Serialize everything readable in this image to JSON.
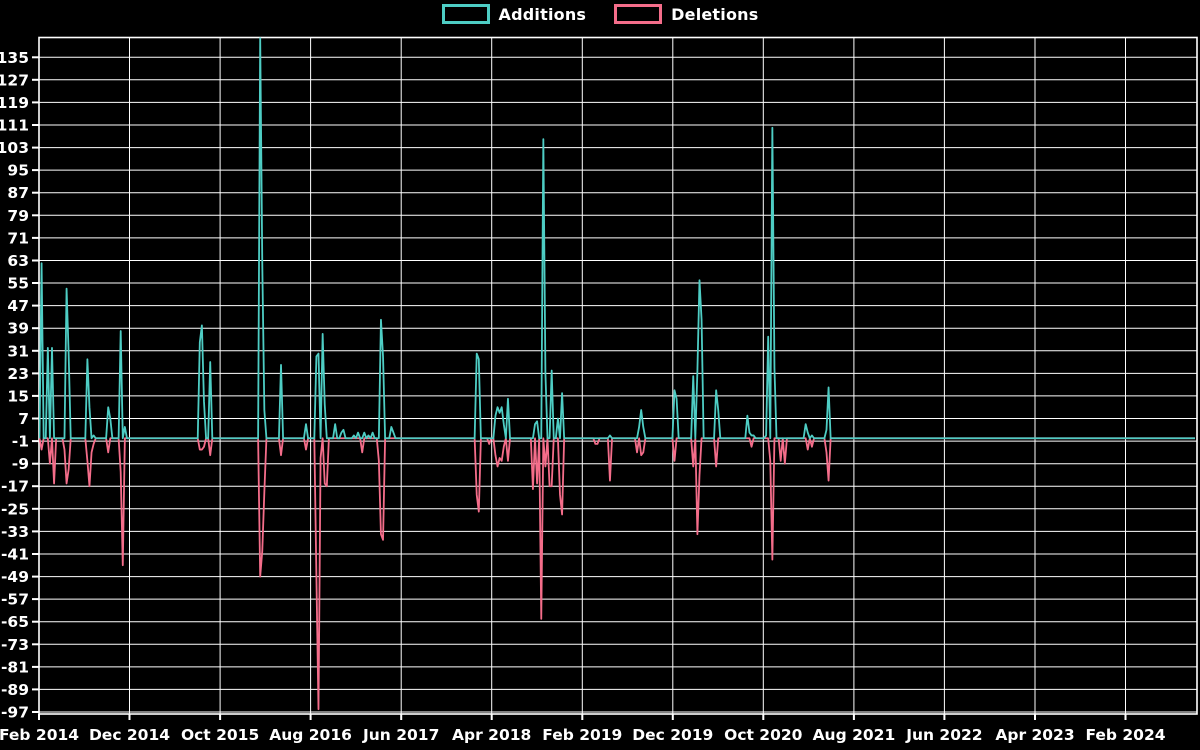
{
  "legend": {
    "items": [
      {
        "label": "Additions",
        "color": "#4ecdc4"
      },
      {
        "label": "Deletions",
        "color": "#f46d8a"
      }
    ]
  },
  "chart_data": {
    "type": "line",
    "title": "",
    "description": "Weekly additions and deletions spike chart on black background with white grid",
    "background_color": "#000000",
    "grid": {
      "visible": true,
      "color": "#ffffff"
    },
    "legend_position": "top-center",
    "x_axis": {
      "tick_labels": [
        "Feb 2014",
        "Dec 2014",
        "Oct 2015",
        "Aug 2016",
        "Jun 2017",
        "Apr 2018",
        "Feb 2019",
        "Dec 2019",
        "Oct 2020",
        "Aug 2021",
        "Jun 2022",
        "Apr 2023",
        "Feb 2024"
      ],
      "tick_interval": "10 months"
    },
    "y_axis": {
      "tick_values": [
        135,
        127,
        119,
        111,
        103,
        95,
        87,
        79,
        71,
        63,
        55,
        47,
        39,
        31,
        23,
        15,
        7,
        -1,
        -9,
        -17,
        -25,
        -33,
        -41,
        -49,
        -57,
        -65,
        -73,
        -81,
        -89,
        -97
      ],
      "step": 8,
      "min_visible": -97,
      "max_visible": 135
    },
    "weeks_total": 556,
    "series": [
      {
        "name": "Additions",
        "color": "#4ecdc4",
        "baseline": 0,
        "spikes_weekly": [
          [
            1,
            62
          ],
          [
            4,
            32
          ],
          [
            6,
            32
          ],
          [
            13,
            53
          ],
          [
            14,
            30
          ],
          [
            23,
            28
          ],
          [
            24,
            11
          ],
          [
            26,
            1
          ],
          [
            33,
            11
          ],
          [
            34,
            7
          ],
          [
            39,
            38
          ],
          [
            41,
            4
          ],
          [
            77,
            34
          ],
          [
            78,
            40
          ],
          [
            79,
            13
          ],
          [
            82,
            27
          ],
          [
            106,
            142
          ],
          [
            107,
            62
          ],
          [
            108,
            10
          ],
          [
            116,
            26
          ],
          [
            128,
            5
          ],
          [
            133,
            29
          ],
          [
            134,
            30
          ],
          [
            136,
            37
          ],
          [
            137,
            12
          ],
          [
            142,
            5
          ],
          [
            145,
            2
          ],
          [
            146,
            3
          ],
          [
            151,
            1
          ],
          [
            153,
            2
          ],
          [
            156,
            2
          ],
          [
            158,
            1
          ],
          [
            160,
            2
          ],
          [
            164,
            42
          ],
          [
            165,
            29
          ],
          [
            169,
            4
          ],
          [
            170,
            2
          ],
          [
            210,
            30
          ],
          [
            211,
            28
          ],
          [
            219,
            8
          ],
          [
            220,
            11
          ],
          [
            221,
            9
          ],
          [
            222,
            11
          ],
          [
            223,
            5
          ],
          [
            225,
            14
          ],
          [
            238,
            5
          ],
          [
            239,
            6
          ],
          [
            242,
            106
          ],
          [
            243,
            23
          ],
          [
            246,
            24
          ],
          [
            249,
            7
          ],
          [
            251,
            16
          ],
          [
            274,
            1
          ],
          [
            288,
            4
          ],
          [
            289,
            10
          ],
          [
            290,
            4
          ],
          [
            305,
            17
          ],
          [
            306,
            14
          ],
          [
            314,
            22
          ],
          [
            316,
            24
          ],
          [
            317,
            56
          ],
          [
            318,
            42
          ],
          [
            325,
            17
          ],
          [
            326,
            10
          ],
          [
            340,
            8
          ],
          [
            341,
            2
          ],
          [
            342,
            1
          ],
          [
            343,
            1
          ],
          [
            349,
            1
          ],
          [
            350,
            36
          ],
          [
            352,
            110
          ],
          [
            353,
            25
          ],
          [
            368,
            5
          ],
          [
            369,
            2
          ],
          [
            371,
            1
          ],
          [
            378,
            3
          ],
          [
            379,
            18
          ]
        ]
      },
      {
        "name": "Deletions",
        "color": "#f46d8a",
        "baseline": 0,
        "spikes_weekly": [
          [
            1,
            -4
          ],
          [
            5,
            -9
          ],
          [
            7,
            -16
          ],
          [
            12,
            -4
          ],
          [
            13,
            -16
          ],
          [
            14,
            -11
          ],
          [
            23,
            -8
          ],
          [
            24,
            -17
          ],
          [
            25,
            -5
          ],
          [
            26,
            -2
          ],
          [
            33,
            -5
          ],
          [
            39,
            -12
          ],
          [
            40,
            -45
          ],
          [
            77,
            -4
          ],
          [
            78,
            -4
          ],
          [
            79,
            -3
          ],
          [
            82,
            -6
          ],
          [
            106,
            -49
          ],
          [
            107,
            -40
          ],
          [
            108,
            -19
          ],
          [
            116,
            -6
          ],
          [
            128,
            -4
          ],
          [
            133,
            -49
          ],
          [
            134,
            -96
          ],
          [
            135,
            -7
          ],
          [
            137,
            -16
          ],
          [
            138,
            -17
          ],
          [
            155,
            -5
          ],
          [
            163,
            -8
          ],
          [
            164,
            -34
          ],
          [
            165,
            -36
          ],
          [
            210,
            -20
          ],
          [
            211,
            -26
          ],
          [
            216,
            -2
          ],
          [
            219,
            -6
          ],
          [
            220,
            -10
          ],
          [
            221,
            -7
          ],
          [
            222,
            -8
          ],
          [
            223,
            -3
          ],
          [
            225,
            -8
          ],
          [
            237,
            -18
          ],
          [
            239,
            -16
          ],
          [
            241,
            -64
          ],
          [
            243,
            -10
          ],
          [
            245,
            -17
          ],
          [
            246,
            -17
          ],
          [
            250,
            -20
          ],
          [
            251,
            -27
          ],
          [
            267,
            -2
          ],
          [
            268,
            -2
          ],
          [
            274,
            -15
          ],
          [
            287,
            -5
          ],
          [
            289,
            -6
          ],
          [
            290,
            -5
          ],
          [
            305,
            -8
          ],
          [
            314,
            -10
          ],
          [
            316,
            -34
          ],
          [
            317,
            -13
          ],
          [
            325,
            -10
          ],
          [
            342,
            -3
          ],
          [
            351,
            -8
          ],
          [
            352,
            -43
          ],
          [
            356,
            -8
          ],
          [
            358,
            -9
          ],
          [
            369,
            -4
          ],
          [
            371,
            -3
          ],
          [
            378,
            -5
          ],
          [
            379,
            -15
          ]
        ]
      }
    ]
  }
}
